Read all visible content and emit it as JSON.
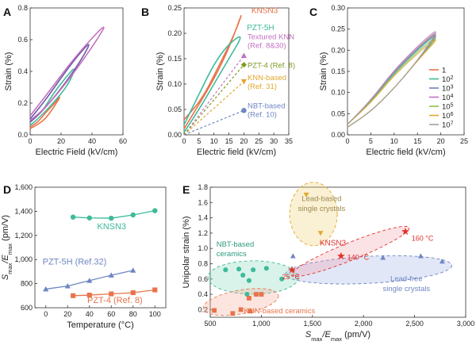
{
  "chart_data": [
    {
      "panel": "A",
      "type": "line",
      "xlabel": "Electric Field (kV/cm)",
      "ylabel": "Strain (%)",
      "xlim": [
        0,
        60
      ],
      "ylim": [
        0,
        0.8
      ],
      "xticks": [
        "0",
        "20",
        "40",
        "60"
      ],
      "yticks": [
        "0.0",
        "0.2",
        "0.4",
        "0.6",
        "0.8"
      ],
      "grid": false,
      "series": [
        {
          "color": "#e8734a",
          "loop": {
            "emax": 20,
            "smax": 0.25,
            "up": [
              [
                0,
                0.05
              ],
              [
                5,
                0.08
              ],
              [
                10,
                0.14
              ],
              [
                15,
                0.19
              ],
              [
                20,
                0.25
              ]
            ],
            "down": [
              [
                20,
                0.25
              ],
              [
                17,
                0.2
              ],
              [
                10,
                0.1
              ],
              [
                4,
                0.06
              ],
              [
                0,
                0.04
              ]
            ]
          }
        },
        {
          "color": "#3dbb9b",
          "loop": {
            "emax": 30,
            "smax": 0.44,
            "up": [
              [
                0,
                0.08
              ],
              [
                8,
                0.15
              ],
              [
                15,
                0.26
              ],
              [
                22,
                0.35
              ],
              [
                30,
                0.44
              ]
            ],
            "down": [
              [
                30,
                0.44
              ],
              [
                25,
                0.32
              ],
              [
                15,
                0.2
              ],
              [
                5,
                0.1
              ],
              [
                0,
                0.06
              ]
            ]
          }
        },
        {
          "color": "#6f5aa8",
          "loop": {
            "emax": 40,
            "smax": 0.6,
            "up": [
              [
                0,
                0.1
              ],
              [
                10,
                0.22
              ],
              [
                20,
                0.36
              ],
              [
                30,
                0.49
              ],
              [
                40,
                0.6
              ]
            ],
            "down": [
              [
                40,
                0.6
              ],
              [
                33,
                0.47
              ],
              [
                20,
                0.29
              ],
              [
                8,
                0.15
              ],
              [
                0,
                0.08
              ]
            ]
          }
        },
        {
          "color": "#c46fbf",
          "loop": {
            "emax": 50,
            "smax": 0.71,
            "up": [
              [
                0,
                0.12
              ],
              [
                12,
                0.27
              ],
              [
                25,
                0.44
              ],
              [
                38,
                0.59
              ],
              [
                50,
                0.71
              ]
            ],
            "down": [
              [
                50,
                0.71
              ],
              [
                42,
                0.58
              ],
              [
                26,
                0.36
              ],
              [
                10,
                0.17
              ],
              [
                0,
                0.09
              ]
            ]
          }
        }
      ]
    },
    {
      "panel": "B",
      "type": "line",
      "xlabel": "Electric field (kV/cm)",
      "ylabel": "Strain (%)",
      "xlim": [
        0,
        35
      ],
      "ylim": [
        0,
        0.25
      ],
      "xticks": [
        "0",
        "5",
        "10",
        "15",
        "20",
        "25",
        "30",
        "35"
      ],
      "yticks": [
        "0.00",
        "0.05",
        "0.10",
        "0.15",
        "0.20",
        "0.25"
      ],
      "grid": false,
      "loops": [
        {
          "name": "KNSN3",
          "color": "#e8734a",
          "up": [
            [
              0,
              0.012
            ],
            [
              5,
              0.06
            ],
            [
              10,
              0.11
            ],
            [
              15,
              0.17
            ],
            [
              20,
              0.25
            ]
          ],
          "down": [
            [
              20,
              0.25
            ],
            [
              17,
              0.2
            ],
            [
              12,
              0.14
            ],
            [
              6,
              0.07
            ],
            [
              0,
              0.03
            ]
          ]
        },
        {
          "name": "PZT-5H",
          "color": "#3dbb9b",
          "up": [
            [
              0,
              0.005
            ],
            [
              5,
              0.05
            ],
            [
              10,
              0.1
            ],
            [
              15,
              0.15
            ],
            [
              20,
              0.2
            ]
          ],
          "down": [
            [
              20,
              0.2
            ],
            [
              15,
              0.18
            ],
            [
              10,
              0.14
            ],
            [
              5,
              0.08
            ],
            [
              0,
              0.02
            ]
          ]
        }
      ],
      "refs": [
        {
          "name": "Textured KNN",
          "ref": "(Ref. 8&30)",
          "color": "#c46fbf",
          "marker": "triangle",
          "end": [
            20,
            0.156
          ]
        },
        {
          "name": "PZT-4 (Ref. 8)",
          "color": "#7d9a22",
          "marker": "diamond",
          "end": [
            20,
            0.138
          ]
        },
        {
          "name": "KNN-based",
          "ref": "(Ref. 31)",
          "color": "#e0a82e",
          "marker": "triangle-down",
          "end": [
            20,
            0.105
          ]
        },
        {
          "name": "NBT-based",
          "ref": "(Ref. 10)",
          "color": "#6e86c2",
          "marker": "circle",
          "end": [
            20,
            0.048
          ]
        }
      ]
    },
    {
      "panel": "C",
      "type": "line",
      "xlabel": "Electric field (kV/cm)",
      "ylabel": "Strain (%)",
      "xlim": [
        0,
        25
      ],
      "ylim": [
        0,
        0.3
      ],
      "xticks": [
        "0",
        "5",
        "10",
        "15",
        "20",
        "25"
      ],
      "yticks": [
        "0.00",
        "0.05",
        "0.10",
        "0.15",
        "0.20",
        "0.25",
        "0.30"
      ],
      "grid": false,
      "legend_position": "bottom-right",
      "series": [
        {
          "label": "1",
          "color": "#e8734a",
          "smax": 0.25
        },
        {
          "label": "10",
          "sup": "2",
          "color": "#3dbb9b",
          "smax": 0.245
        },
        {
          "label": "10",
          "sup": "3",
          "color": "#7080c0",
          "smax": 0.248
        },
        {
          "label": "10",
          "sup": "4",
          "color": "#c46fbf",
          "smax": 0.256
        },
        {
          "label": "10",
          "sup": "5",
          "color": "#8cc04a",
          "smax": 0.24
        },
        {
          "label": "10",
          "sup": "6",
          "color": "#e0a82e",
          "smax": 0.235
        },
        {
          "label": "10",
          "sup": "7",
          "color": "#a0a0a0",
          "smax": 0.252
        }
      ]
    },
    {
      "panel": "D",
      "type": "line",
      "xlabel": "Temperature (°C)",
      "ylabel_main": "S",
      "ylabel_sub1": "max",
      "ylabel_mid": "/E",
      "ylabel_sub2": "max",
      "ylabel_unit": " (pm/V)",
      "xlim": [
        -10,
        110
      ],
      "ylim": [
        600,
        1600
      ],
      "xticks": [
        {
          "v": 0,
          "t": "0"
        },
        {
          "v": 20,
          "t": "20"
        },
        {
          "v": 40,
          "t": "40"
        },
        {
          "v": 60,
          "t": "60"
        },
        {
          "v": 80,
          "t": "80"
        },
        {
          "v": 100,
          "t": "100"
        }
      ],
      "yticks": [
        {
          "v": 600,
          "t": "600"
        },
        {
          "v": 800,
          "t": "800"
        },
        {
          "v": 1000,
          "t": "1,000"
        },
        {
          "v": 1200,
          "t": "1,200"
        },
        {
          "v": 1400,
          "t": "1,400"
        },
        {
          "v": 1600,
          "t": "1,600"
        }
      ],
      "grid": false,
      "series": [
        {
          "name": "KNSN3",
          "color": "#3dbb9b",
          "marker": "circle",
          "x": [
            25,
            40,
            60,
            80,
            100
          ],
          "y": [
            1352,
            1345,
            1343,
            1370,
            1405
          ]
        },
        {
          "name": "PZT-5H (Ref.32)",
          "color": "#6e86c2",
          "marker": "triangle",
          "x": [
            0,
            20,
            40,
            60,
            80
          ],
          "y": [
            755,
            780,
            825,
            870,
            910
          ]
        },
        {
          "name": "PZT-4 (Ref. 8)",
          "color": "#e8734a",
          "marker": "square",
          "x": [
            25,
            40,
            60,
            80,
            100
          ],
          "y": [
            700,
            705,
            715,
            725,
            748
          ]
        }
      ]
    },
    {
      "panel": "E",
      "type": "scatter",
      "xlabel_main": "S",
      "xlabel_sub1": "max",
      "xlabel_mid": "/E",
      "xlabel_sub2": "max",
      "xlabel_unit": " (pm/V)",
      "ylabel": "Unipolar strain (%)",
      "xlim": [
        500,
        3000
      ],
      "ylim": [
        0.1,
        1.8
      ],
      "xticks": [
        {
          "v": 500,
          "t": "500"
        },
        {
          "v": 1000,
          "t": "1,000"
        },
        {
          "v": 1500,
          "t": "1,500"
        },
        {
          "v": 2000,
          "t": "2,000"
        },
        {
          "v": 2500,
          "t": "2,500"
        },
        {
          "v": 3000,
          "t": "3,000"
        }
      ],
      "yticks": [
        {
          "v": 0.2,
          "t": "0.2"
        },
        {
          "v": 0.4,
          "t": "0.4"
        },
        {
          "v": 0.6,
          "t": "0.6"
        },
        {
          "v": 0.8,
          "t": "0.8"
        },
        {
          "v": 1.0,
          "t": "1.0"
        },
        {
          "v": 1.2,
          "t": "1.2"
        },
        {
          "v": 1.4,
          "t": "1.4"
        },
        {
          "v": 1.6,
          "t": "1.6"
        },
        {
          "v": 1.8,
          "t": "1.8"
        }
      ],
      "grid": false,
      "groups": [
        {
          "name": "NBT-based ceramics",
          "color": "#3dbb9b",
          "marker": "circle",
          "points": [
            [
              650,
              0.72
            ],
            [
              780,
              0.73
            ],
            [
              820,
              0.65
            ],
            [
              880,
              0.58
            ],
            [
              920,
              0.72
            ],
            [
              1050,
              0.74
            ],
            [
              1200,
              0.6
            ],
            [
              860,
              0.4
            ]
          ]
        },
        {
          "name": "KNN-based ceramics",
          "color": "#e8734a",
          "marker": "square",
          "points": [
            [
              540,
              0.19
            ],
            [
              720,
              0.15
            ],
            [
              800,
              0.2
            ],
            [
              880,
              0.35
            ],
            [
              950,
              0.4
            ],
            [
              1000,
              0.4
            ],
            [
              890,
              0.18
            ]
          ]
        },
        {
          "name": "Lead-based single crystals",
          "color": "#e0a82e",
          "marker": "triangle-down",
          "points": [
            [
              1440,
              1.7
            ],
            [
              1580,
              1.2
            ]
          ]
        },
        {
          "name": "Lead-free single crystals",
          "color": "#6e86c2",
          "marker": "triangle",
          "points": [
            [
              1310,
              0.9
            ],
            [
              2190,
              0.88
            ],
            [
              2560,
              0.9
            ],
            [
              2770,
              0.83
            ]
          ]
        },
        {
          "name": "KNSN3",
          "color": "#e0322e",
          "marker": "star",
          "points": [
            [
              1300,
              0.72
            ],
            [
              1780,
              0.9
            ],
            [
              2410,
              1.22
            ]
          ],
          "labels": [
            "25 °C",
            "140 °C",
            "160 °C"
          ]
        }
      ]
    }
  ],
  "panels": {
    "A": "A",
    "B": "B",
    "C": "C",
    "D": "D",
    "E": "E"
  }
}
